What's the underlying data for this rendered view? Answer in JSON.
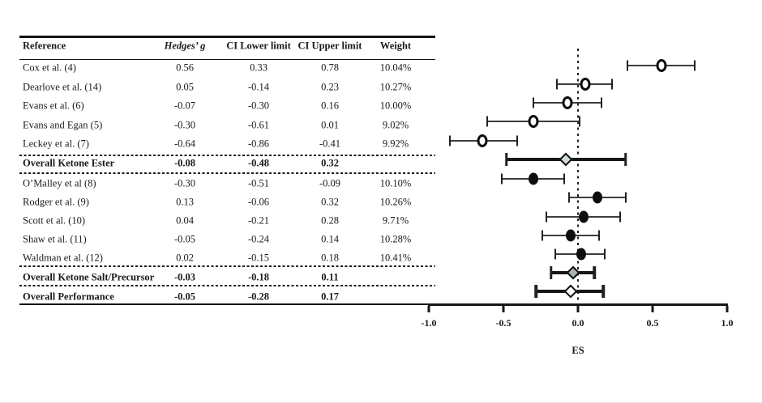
{
  "table": {
    "columns": [
      "Reference",
      "Hedges’ g",
      "CI Lower limit",
      "CI Upper limit",
      "Weight"
    ]
  },
  "chart_data": {
    "type": "forest",
    "xlabel": "ES",
    "xlim": [
      -1.0,
      1.0
    ],
    "x_ticks": [
      -1.0,
      -0.5,
      0.0,
      0.5,
      1.0
    ],
    "zero_reference_line": 0.0,
    "grid": false,
    "colors": {
      "marker_outline": "#0e0e0e",
      "overall_ester_diamond_fill": "#cfd9da",
      "overall_salt_diamond_fill": "#a9b4b6",
      "overall_performance_diamond_fill": "#ffffff"
    },
    "rows": [
      {
        "label": "Cox et al. (4)",
        "es": 0.56,
        "lower": 0.33,
        "upper": 0.78,
        "weight": "10.04%",
        "kind": "study-open"
      },
      {
        "label": "Dearlove et al. (14)",
        "es": 0.05,
        "lower": -0.14,
        "upper": 0.23,
        "weight": "10.27%",
        "kind": "study-open"
      },
      {
        "label": "Evans et al. (6)",
        "es": -0.07,
        "lower": -0.3,
        "upper": 0.16,
        "weight": "10.00%",
        "kind": "study-open"
      },
      {
        "label": "Evans and Egan (5)",
        "es": -0.3,
        "lower": -0.61,
        "upper": 0.01,
        "weight": "9.02%",
        "kind": "study-open"
      },
      {
        "label": "Leckey et al. (7)",
        "es": -0.64,
        "lower": -0.86,
        "upper": -0.41,
        "weight": "9.92%",
        "kind": "study-open"
      },
      {
        "label": "Overall Ketone Ester",
        "es": -0.08,
        "lower": -0.48,
        "upper": 0.32,
        "weight": "",
        "kind": "overall",
        "fill": "#cfd9da"
      },
      {
        "label": "O’Malley et al (8)",
        "es": -0.3,
        "lower": -0.51,
        "upper": -0.09,
        "weight": "10.10%",
        "kind": "study-filled"
      },
      {
        "label": "Rodger et al. (9)",
        "es": 0.13,
        "lower": -0.06,
        "upper": 0.32,
        "weight": "10.26%",
        "kind": "study-filled"
      },
      {
        "label": "Scott et al. (10)",
        "es": 0.04,
        "lower": -0.21,
        "upper": 0.28,
        "weight": "9.71%",
        "kind": "study-filled"
      },
      {
        "label": "Shaw et al. (11)",
        "es": -0.05,
        "lower": -0.24,
        "upper": 0.14,
        "weight": "10.28%",
        "kind": "study-filled"
      },
      {
        "label": "Waldman et al. (12)",
        "es": 0.02,
        "lower": -0.15,
        "upper": 0.18,
        "weight": "10.41%",
        "kind": "study-filled"
      },
      {
        "label": "Overall Ketone Salt/Precursor",
        "es": -0.03,
        "lower": -0.18,
        "upper": 0.11,
        "weight": "",
        "kind": "overall",
        "fill": "#a9b4b6"
      },
      {
        "label": "Overall Performance",
        "es": -0.05,
        "lower": -0.28,
        "upper": 0.17,
        "weight": "",
        "kind": "overall",
        "fill": "#ffffff"
      }
    ]
  }
}
